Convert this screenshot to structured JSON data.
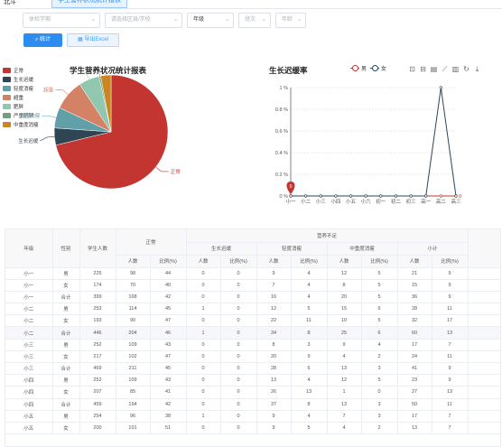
{
  "header": {
    "logo": "北斗",
    "active_tab": "学生营养状况统计报表"
  },
  "filters": {
    "grade_level": {
      "placeholder": "体检学期",
      "value": ""
    },
    "district": {
      "placeholder": "请选择区县/学校",
      "value": ""
    },
    "grade": {
      "placeholder": "",
      "value": "年级"
    },
    "class": {
      "placeholder": "班次",
      "value": ""
    },
    "age": {
      "placeholder": "年龄",
      "value": ""
    }
  },
  "buttons": {
    "stats": "统计",
    "export": "导出Excel"
  },
  "colors": {
    "primary": "#2d8cf0",
    "pie": [
      "#c23531",
      "#2f4554",
      "#61a0a8",
      "#d48265",
      "#91c7ae",
      "#749f83",
      "#ca8622"
    ],
    "male_line": "#c23531",
    "female_line": "#2f4554"
  },
  "pie_chart": {
    "title": "学生营养状况统计报表",
    "legend": [
      "正常",
      "生长迟缓",
      "轻度消瘦",
      "超重",
      "肥胖",
      "严重肥胖",
      "中重度消瘦"
    ]
  },
  "line_chart": {
    "title": "生长迟缓率",
    "legend": [
      "男",
      "女"
    ],
    "toolbox_icons": [
      "zoom-icon",
      "zoom-reset-icon",
      "data-view-icon",
      "line-icon",
      "bar-icon",
      "restore-icon",
      "download-icon"
    ],
    "marker_label": "0"
  },
  "chart_data": [
    {
      "type": "pie",
      "title": "学生营养状况统计报表",
      "categories": [
        "正常",
        "生长迟缓",
        "轻度消瘦",
        "超重",
        "肥胖",
        "严重肥胖",
        "中重度消瘦"
      ],
      "values": [
        73,
        5,
        6,
        9,
        6,
        0.5,
        3
      ]
    },
    {
      "type": "line",
      "title": "生长迟缓率",
      "categories": [
        "小一",
        "小二",
        "小三",
        "小四",
        "小五",
        "小六",
        "初一",
        "初二",
        "初三",
        "高一",
        "高二",
        "高三"
      ],
      "series": [
        {
          "name": "男",
          "values": [
            0,
            0,
            0,
            0,
            0,
            0,
            0,
            0,
            0,
            0,
            0,
            0
          ]
        },
        {
          "name": "女",
          "values": [
            0,
            0,
            0,
            0,
            0,
            0,
            0,
            0,
            0,
            0,
            1,
            0
          ]
        }
      ],
      "ylim": [
        0,
        1
      ],
      "yticks": [
        "0 %",
        "0.2 %",
        "0.4 %",
        "0.6 %",
        "0.8 %",
        "1 %"
      ],
      "end_label": "0"
    }
  ],
  "table": {
    "head": {
      "grade": "年级",
      "gender": "性别",
      "student_count": "学生人数",
      "normal": "正常",
      "deficit": "营养不足",
      "stunting": "生长迟缓",
      "mild_thin": "轻度消瘦",
      "moderate_thin": "中重度消瘦",
      "subtotal": "小计",
      "count": "人数",
      "ratio": "比例(%)"
    },
    "rows": [
      [
        "小一",
        "男",
        "225",
        "98",
        "44",
        "0",
        "0",
        "9",
        "4",
        "12",
        "5",
        "21",
        "9"
      ],
      [
        "小一",
        "女",
        "174",
        "70",
        "40",
        "0",
        "0",
        "7",
        "4",
        "8",
        "5",
        "15",
        "9"
      ],
      [
        "小一",
        "合计",
        "399",
        "168",
        "42",
        "0",
        "0",
        "16",
        "4",
        "20",
        "5",
        "36",
        "9"
      ],
      [
        "小二",
        "男",
        "253",
        "114",
        "45",
        "1",
        "0",
        "12",
        "5",
        "15",
        "6",
        "28",
        "11"
      ],
      [
        "小二",
        "女",
        "193",
        "90",
        "47",
        "0",
        "0",
        "22",
        "11",
        "10",
        "5",
        "32",
        "17"
      ],
      [
        "小二",
        "合计",
        "446",
        "204",
        "46",
        "1",
        "0",
        "34",
        "8",
        "25",
        "6",
        "60",
        "13"
      ],
      [
        "小三",
        "男",
        "252",
        "109",
        "43",
        "0",
        "0",
        "8",
        "3",
        "9",
        "4",
        "17",
        "7"
      ],
      [
        "小三",
        "女",
        "217",
        "102",
        "47",
        "0",
        "0",
        "20",
        "9",
        "4",
        "2",
        "24",
        "11"
      ],
      [
        "小三",
        "合计",
        "469",
        "211",
        "45",
        "0",
        "0",
        "28",
        "6",
        "13",
        "3",
        "41",
        "9"
      ],
      [
        "小四",
        "男",
        "252",
        "109",
        "43",
        "0",
        "0",
        "13",
        "4",
        "12",
        "5",
        "23",
        "9"
      ],
      [
        "小四",
        "女",
        "207",
        "85",
        "41",
        "0",
        "0",
        "26",
        "13",
        "1",
        "0",
        "27",
        "13"
      ],
      [
        "小四",
        "合计",
        "459",
        "194",
        "42",
        "0",
        "0",
        "37",
        "8",
        "13",
        "3",
        "50",
        "11"
      ],
      [
        "小五",
        "男",
        "254",
        "96",
        "38",
        "1",
        "0",
        "9",
        "4",
        "7",
        "3",
        "17",
        "7"
      ],
      [
        "小五",
        "女",
        "200",
        "101",
        "51",
        "0",
        "0",
        "9",
        "5",
        "4",
        "2",
        "13",
        "7"
      ]
    ]
  }
}
